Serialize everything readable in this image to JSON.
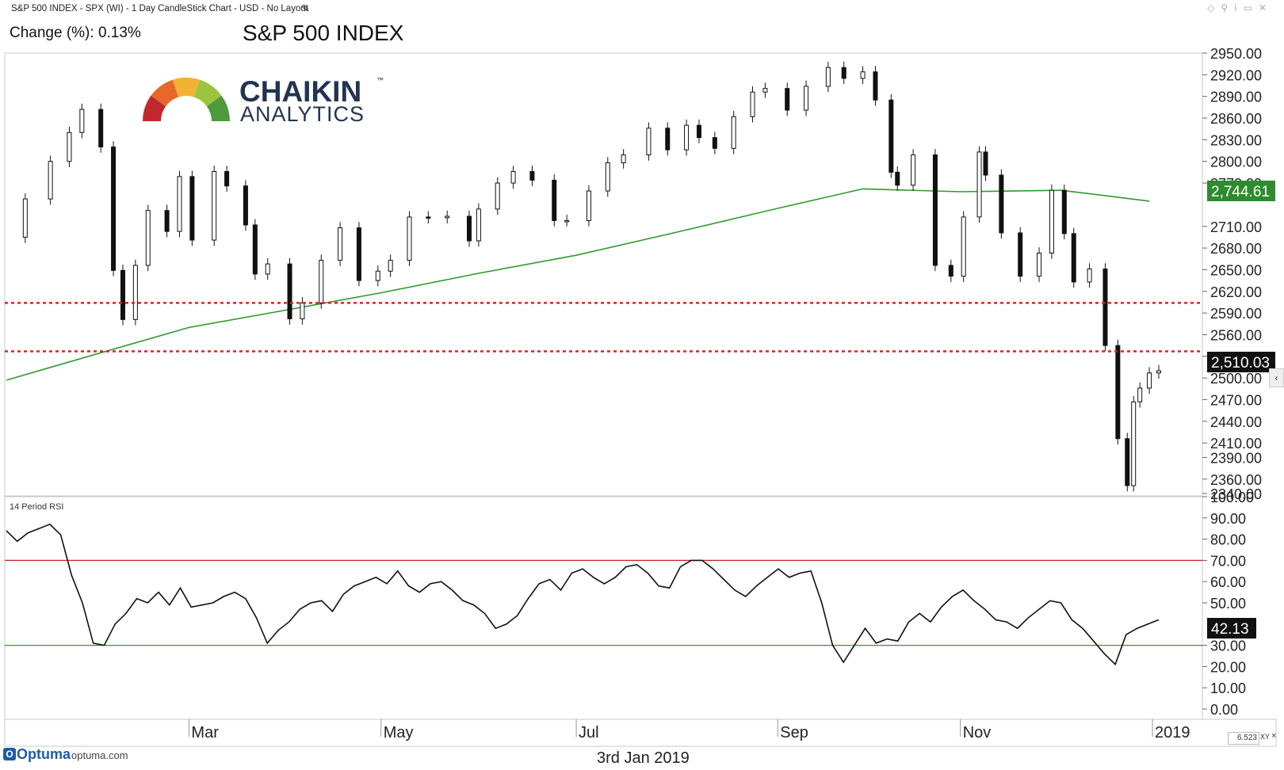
{
  "header": {
    "chart_descriptor": "S&P 500 INDEX - SPX (WI) - 1 Day CandleStick Chart - USD - No Layout",
    "change_label": "Change (%): 0.13%",
    "title": "S&P 500 INDEX",
    "edit_icon": "pencil-icon",
    "toolbar_icons": [
      "diamond-icon",
      "pin-icon",
      "info-icon",
      "window-icon",
      "close-icon"
    ]
  },
  "logo": {
    "line1": "CHAIKIN",
    "line2": "ANALYTICS",
    "trademark": "™",
    "gauge_colors": [
      "#c0282d",
      "#e8682a",
      "#f2b233",
      "#9bc53d",
      "#4f9a3c"
    ]
  },
  "price_panel": {
    "y_ticks": [
      "2950.00",
      "2920.00",
      "2890.00",
      "2860.00",
      "2830.00",
      "2800.00",
      "2770.00",
      "2710.00",
      "2680.00",
      "2650.00",
      "2620.00",
      "2590.00",
      "2560.00",
      "2530.00",
      "2500.00",
      "2470.00",
      "2440.00",
      "2410.00",
      "2390.00",
      "2360.00",
      "2340.00"
    ],
    "ma_badge": "2,744.61",
    "last_badge": "2,510.03",
    "colors": {
      "ma": "#2e9a2e",
      "support": "#e02020",
      "badge_ma": "#2e8b2e",
      "badge_last": "#111111"
    }
  },
  "rsi_panel": {
    "label": "14 Period RSI",
    "y_ticks": [
      "100.00",
      "90.00",
      "80.00",
      "70.00",
      "60.00",
      "50.00",
      "30.00",
      "20.00",
      "10.00",
      "0.00"
    ],
    "last_badge": "42.13",
    "colors": {
      "overbought": "#c8201d",
      "oversold": "#2e9a2e",
      "line": "#111111"
    }
  },
  "x_axis": {
    "labels": [
      "Mar",
      "May",
      "Jul",
      "Sep",
      "Nov",
      "2019"
    ]
  },
  "footer": {
    "brand": "Optuma",
    "domain": "optuma.com",
    "date": "3rd Jan 2019",
    "zoom_value": "6.523",
    "zoom_unit": "XY",
    "zoom_close": "×",
    "scroll_icon": "chevron-left-icon"
  },
  "chart_data": [
    {
      "type": "candlestick",
      "series_name": "S&P 500 INDEX",
      "ylim": [
        2340,
        2950
      ],
      "x_labels": [
        "Mar",
        "May",
        "Jul",
        "Sep",
        "Nov",
        "2019"
      ],
      "moving_average": {
        "last_value": 2744.61,
        "points": [
          [
            "2018-01-02",
            2497
          ],
          [
            "2018-02-01",
            2535
          ],
          [
            "2018-03-01",
            2570
          ],
          [
            "2018-04-02",
            2595
          ],
          [
            "2018-05-01",
            2618
          ],
          [
            "2018-06-01",
            2645
          ],
          [
            "2018-07-02",
            2670
          ],
          [
            "2018-08-01",
            2700
          ],
          [
            "2018-09-04",
            2735
          ],
          [
            "2018-10-01",
            2762
          ],
          [
            "2018-11-01",
            2758
          ],
          [
            "2018-12-03",
            2760
          ],
          [
            "2018-12-31",
            2745
          ]
        ]
      },
      "support_lines": [
        2604,
        2537
      ],
      "last_value": 2510.03,
      "closes": [
        [
          "2018-01-02",
          2695
        ],
        [
          "2018-01-08",
          2748
        ],
        [
          "2018-01-16",
          2800
        ],
        [
          "2018-01-22",
          2840
        ],
        [
          "2018-01-26",
          2872
        ],
        [
          "2018-02-01",
          2820
        ],
        [
          "2018-02-05",
          2649
        ],
        [
          "2018-02-08",
          2581
        ],
        [
          "2018-02-12",
          2656
        ],
        [
          "2018-02-16",
          2732
        ],
        [
          "2018-02-22",
          2703
        ],
        [
          "2018-02-26",
          2779
        ],
        [
          "2018-03-02",
          2691
        ],
        [
          "2018-03-09",
          2786
        ],
        [
          "2018-03-13",
          2766
        ],
        [
          "2018-03-19",
          2712
        ],
        [
          "2018-03-22",
          2644
        ],
        [
          "2018-03-26",
          2658
        ],
        [
          "2018-04-02",
          2582
        ],
        [
          "2018-04-06",
          2604
        ],
        [
          "2018-04-12",
          2663
        ],
        [
          "2018-04-18",
          2708
        ],
        [
          "2018-04-24",
          2635
        ],
        [
          "2018-04-30",
          2648
        ],
        [
          "2018-05-04",
          2663
        ],
        [
          "2018-05-10",
          2723
        ],
        [
          "2018-05-16",
          2722
        ],
        [
          "2018-05-22",
          2724
        ],
        [
          "2018-05-29",
          2690
        ],
        [
          "2018-06-01",
          2734
        ],
        [
          "2018-06-07",
          2770
        ],
        [
          "2018-06-12",
          2786
        ],
        [
          "2018-06-18",
          2774
        ],
        [
          "2018-06-25",
          2718
        ],
        [
          "2018-06-29",
          2718
        ],
        [
          "2018-07-06",
          2759
        ],
        [
          "2018-07-12",
          2798
        ],
        [
          "2018-07-17",
          2809
        ],
        [
          "2018-07-25",
          2846
        ],
        [
          "2018-07-31",
          2816
        ],
        [
          "2018-08-06",
          2850
        ],
        [
          "2018-08-10",
          2833
        ],
        [
          "2018-08-15",
          2818
        ],
        [
          "2018-08-21",
          2862
        ],
        [
          "2018-08-27",
          2896
        ],
        [
          "2018-08-31",
          2901
        ],
        [
          "2018-09-07",
          2871
        ],
        [
          "2018-09-13",
          2904
        ],
        [
          "2018-09-20",
          2930
        ],
        [
          "2018-09-25",
          2915
        ],
        [
          "2018-10-01",
          2924
        ],
        [
          "2018-10-05",
          2885
        ],
        [
          "2018-10-10",
          2785
        ],
        [
          "2018-10-12",
          2767
        ],
        [
          "2018-10-17",
          2809
        ],
        [
          "2018-10-24",
          2656
        ],
        [
          "2018-10-29",
          2641
        ],
        [
          "2018-11-02",
          2723
        ],
        [
          "2018-11-07",
          2813
        ],
        [
          "2018-11-09",
          2781
        ],
        [
          "2018-11-14",
          2701
        ],
        [
          "2018-11-20",
          2641
        ],
        [
          "2018-11-26",
          2673
        ],
        [
          "2018-11-30",
          2760
        ],
        [
          "2018-12-04",
          2700
        ],
        [
          "2018-12-07",
          2633
        ],
        [
          "2018-12-12",
          2651
        ],
        [
          "2018-12-17",
          2545
        ],
        [
          "2018-12-21",
          2416
        ],
        [
          "2018-12-24",
          2351
        ],
        [
          "2018-12-26",
          2467
        ],
        [
          "2018-12-28",
          2486
        ],
        [
          "2018-12-31",
          2507
        ],
        [
          "2019-01-03",
          2510
        ]
      ]
    },
    {
      "type": "line",
      "series_name": "14 Period RSI",
      "ylim": [
        0,
        100
      ],
      "overbought": 70,
      "oversold": 30,
      "last_value": 42.13,
      "values": [
        84,
        79,
        83,
        85,
        87,
        82,
        63,
        50,
        31,
        30,
        40,
        45,
        52,
        50,
        55,
        49,
        57,
        48,
        49,
        50,
        53,
        55,
        52,
        43,
        31,
        37,
        41,
        47,
        50,
        51,
        46,
        54,
        58,
        60,
        62,
        59,
        65,
        58,
        55,
        59,
        60,
        56,
        51,
        49,
        45,
        38,
        40,
        44,
        52,
        59,
        61,
        56,
        64,
        66,
        62,
        59,
        62,
        67,
        68,
        64,
        58,
        57,
        67,
        70,
        70,
        66,
        61,
        56,
        53,
        58,
        62,
        66,
        62,
        64,
        65,
        50,
        30,
        22,
        30,
        38,
        31,
        33,
        32,
        41,
        45,
        41,
        48,
        53,
        56,
        51,
        47,
        42,
        41,
        38,
        43,
        47,
        51,
        50,
        42,
        38,
        32,
        26,
        21,
        35,
        38,
        40,
        42
      ]
    }
  ]
}
